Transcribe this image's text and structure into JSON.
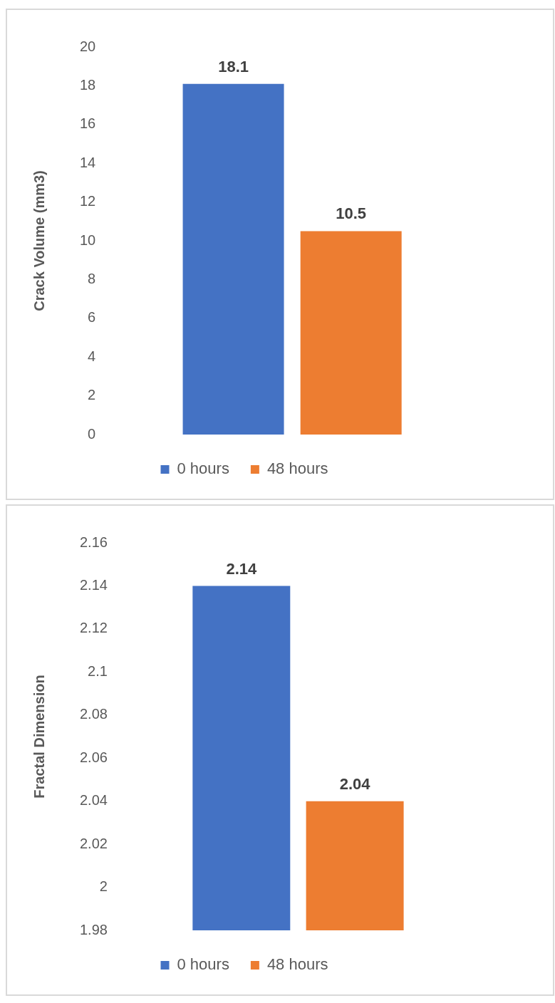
{
  "chart_data": [
    {
      "type": "bar",
      "categories": [
        null
      ],
      "ylabel": "Crack Volume (mm3)",
      "ylim": [
        0,
        20
      ],
      "yticks": [
        0,
        2,
        4,
        6,
        8,
        10,
        12,
        14,
        16,
        18,
        20
      ],
      "grid": false,
      "legend": "bottom",
      "data_labels": true,
      "series": [
        {
          "name": "0 hours",
          "color": "#4472c4",
          "values": [
            18.1
          ]
        },
        {
          "name": "48 hours",
          "color": "#ed7d31",
          "values": [
            10.5
          ]
        }
      ]
    },
    {
      "type": "bar",
      "categories": [
        null
      ],
      "ylabel": "Fractal Dimension",
      "ylim": [
        1.98,
        2.16
      ],
      "yticks": [
        1.98,
        2,
        2.02,
        2.04,
        2.06,
        2.08,
        2.1,
        2.12,
        2.14,
        2.16
      ],
      "grid": false,
      "legend": "bottom",
      "data_labels": true,
      "series": [
        {
          "name": "0 hours",
          "color": "#4472c4",
          "values": [
            2.14
          ]
        },
        {
          "name": "48 hours",
          "color": "#ed7d31",
          "values": [
            2.04
          ]
        }
      ]
    }
  ]
}
